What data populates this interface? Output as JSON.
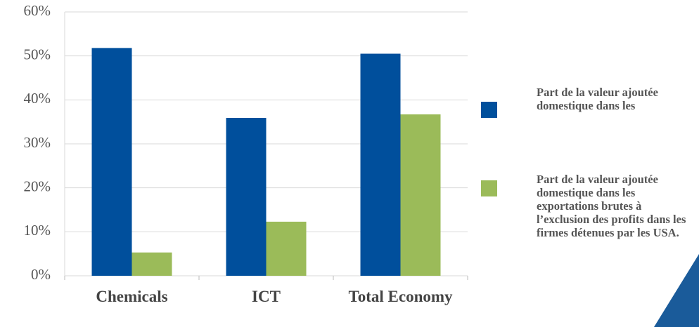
{
  "chart_data": {
    "type": "bar",
    "categories": [
      "Chemicals",
      "ICT",
      "Total Economy"
    ],
    "series": [
      {
        "name": "Part de la valeur ajoutée domestique dans les",
        "color": "#004f9c",
        "values": [
          51.8,
          35.9,
          50.5
        ]
      },
      {
        "name": "Part de la valeur ajoutée domestique dans les exportations brutes à l’exclusion des profits dans les firmes détenues par les USA.",
        "color": "#9bbb59",
        "values": [
          5.3,
          12.3,
          36.7
        ]
      }
    ],
    "ylim": [
      0,
      60
    ],
    "yticks": [
      {
        "value": 0,
        "label": "0%"
      },
      {
        "value": 10,
        "label": "10%"
      },
      {
        "value": 20,
        "label": "20%"
      },
      {
        "value": 30,
        "label": "30%"
      },
      {
        "value": 40,
        "label": "40%"
      },
      {
        "value": 50,
        "label": "50%"
      },
      {
        "value": 60,
        "label": "60%"
      }
    ],
    "grid": true,
    "legend": "right"
  }
}
